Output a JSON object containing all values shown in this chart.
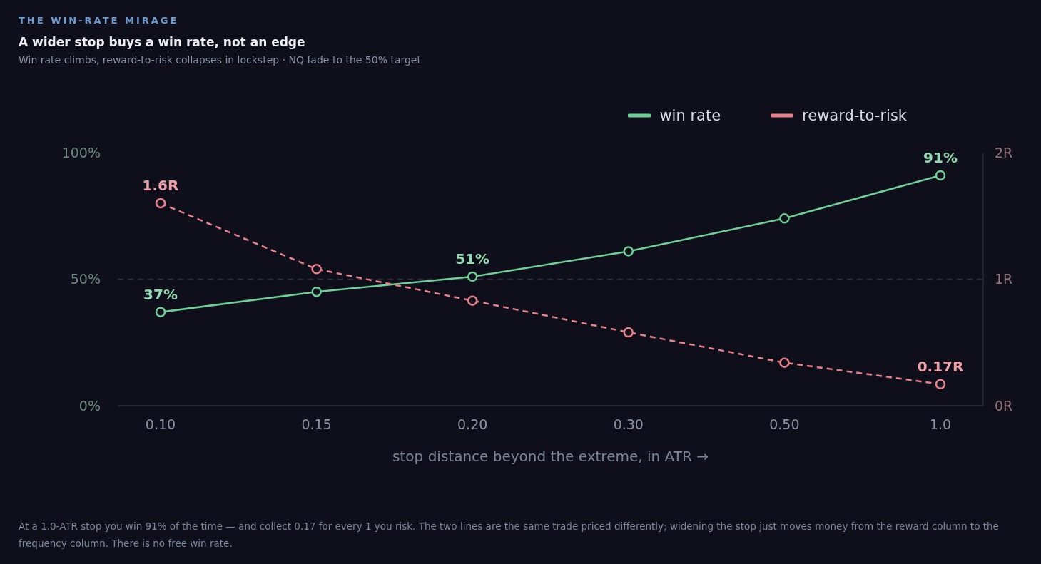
{
  "chart_data": {
    "type": "line",
    "title": "A wider stop buys a win rate, not an edge",
    "subtitle": "Win rate climbs, reward-to-risk collapses in lockstep · NQ fade to the 50% target",
    "annotations": [
      "THE WIN-RATE MIRAGE",
      "At a 1.0-ATR stop you win 91% of the time — and collect 0.17 for every 1 you risk. The two lines are the same trade priced differently; widening the stop just moves money from the reward column to the frequency column. There is no free win rate."
    ],
    "xlabel": "stop distance beyond the extreme, in ATR →",
    "categories": [
      "0.10",
      "0.15",
      "0.20",
      "0.30",
      "0.50",
      "1.0"
    ],
    "series": [
      {
        "name": "win rate",
        "color": "#6fcf97",
        "values": [
          37,
          45,
          51,
          61,
          74,
          91
        ],
        "value_labels": [
          "37%",
          null,
          "51%",
          null,
          null,
          "91%"
        ],
        "line_style": "solid"
      },
      {
        "name": "reward-to-risk",
        "color": "#e8818a",
        "axis": "y2",
        "values": [
          1.6,
          1.08,
          0.83,
          0.58,
          0.34,
          0.17
        ],
        "value_labels": [
          "1.6R",
          null,
          null,
          null,
          null,
          "0.17R"
        ],
        "line_style": "dashed"
      }
    ],
    "ylim": [
      0,
      100
    ],
    "yticks": [
      {
        "value": 0,
        "label": "0%"
      },
      {
        "value": 50,
        "label": "50%"
      },
      {
        "value": 100,
        "label": "100%"
      }
    ],
    "y2lim": [
      0,
      2
    ],
    "y2ticks": [
      {
        "value": 0,
        "label": "0R"
      },
      {
        "value": 1,
        "label": "1R"
      },
      {
        "value": 2,
        "label": "2R"
      }
    ],
    "ref_lines": [
      {
        "axis": "y",
        "value": 50,
        "color": "#2c2e3c",
        "line_style": "dashed"
      }
    ],
    "marker": "circle",
    "legend": "top right",
    "grid": false
  }
}
